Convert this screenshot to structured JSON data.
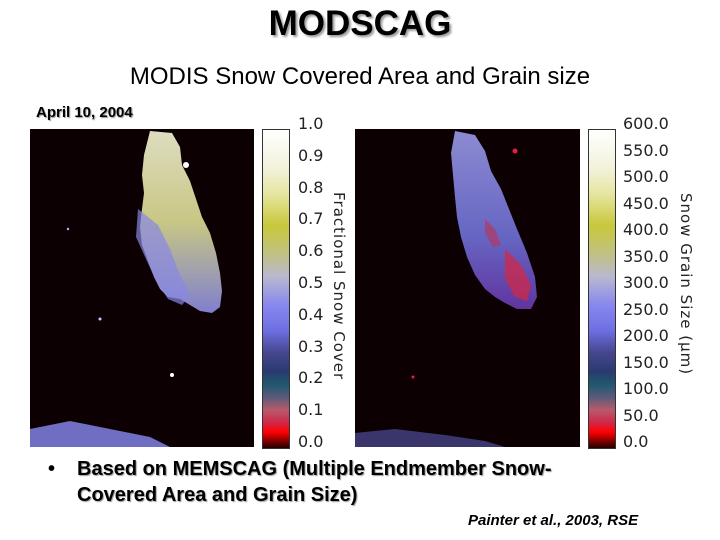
{
  "title": "MODSCAG",
  "subtitle": "MODIS Snow Covered Area and Grain size",
  "date": "April 10, 2004",
  "colorbar_left": {
    "title": "Fractional Snow Cover",
    "ticks": [
      "1.0",
      "0.9",
      "0.8",
      "0.7",
      "0.6",
      "0.5",
      "0.4",
      "0.3",
      "0.2",
      "0.1",
      "0.0"
    ]
  },
  "colorbar_right": {
    "title": "Snow Grain Size (μm)",
    "ticks": [
      "600.0",
      "550.0",
      "500.0",
      "450.0",
      "400.0",
      "350.0",
      "300.0",
      "250.0",
      "200.0",
      "150.0",
      "100.0",
      "50.0",
      "0.0"
    ]
  },
  "bullet": {
    "line1": "Based on MEMSCAG (Multiple Endmember Snow-",
    "line2": "Covered Area and Grain Size)"
  },
  "citation": "Painter et al., 2003, RSE",
  "colors": {
    "map_background": "#0d0003",
    "snow_high": "#e8e8b0",
    "snow_mid": "#8a8ae0",
    "grain_large": "#d02848"
  }
}
